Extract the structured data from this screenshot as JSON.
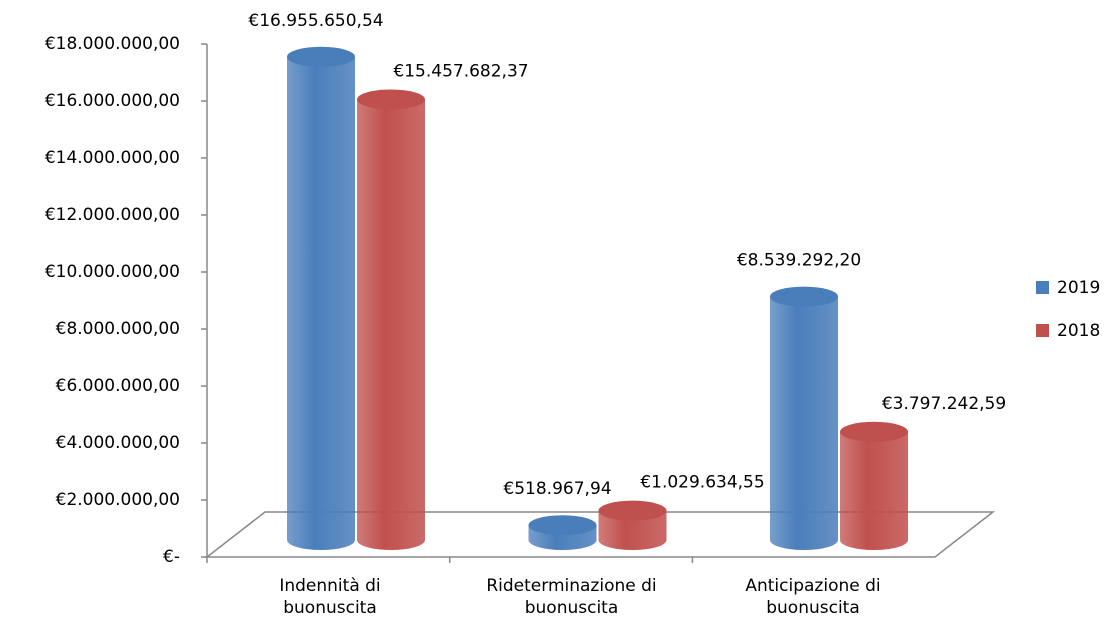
{
  "chart_data": {
    "type": "bar3d",
    "categories": [
      "Indennità di buonuscita",
      "Rideterminazione di buonuscita",
      "Anticipazione di buonuscita"
    ],
    "series": [
      {
        "name": "2019",
        "color": "#4a7ebb",
        "values": [
          16955650.54,
          518967.94,
          8539292.2
        ],
        "value_labels": [
          "€16.955.650,54",
          "€518.967,94",
          "€8.539.292,20"
        ]
      },
      {
        "name": "2018",
        "color": "#c0504d",
        "values": [
          15457682.37,
          1029634.55,
          3797242.59
        ],
        "value_labels": [
          "€15.457.682,37",
          "€1.029.634,55",
          "€3.797.242,59"
        ]
      }
    ],
    "ylim": [
      0,
      18000000
    ],
    "yticks": [
      {
        "value": 0,
        "label": "€-"
      },
      {
        "value": 2000000,
        "label": "€2.000.000,00"
      },
      {
        "value": 4000000,
        "label": "€4.000.000,00"
      },
      {
        "value": 6000000,
        "label": "€6.000.000,00"
      },
      {
        "value": 8000000,
        "label": "€8.000.000,00"
      },
      {
        "value": 10000000,
        "label": "€10.000.000,00"
      },
      {
        "value": 12000000,
        "label": "€12.000.000,00"
      },
      {
        "value": 14000000,
        "label": "€14.000.000,00"
      },
      {
        "value": 16000000,
        "label": "€16.000.000,00"
      },
      {
        "value": 18000000,
        "label": "€18.000.000,00"
      }
    ],
    "legend": "right"
  }
}
